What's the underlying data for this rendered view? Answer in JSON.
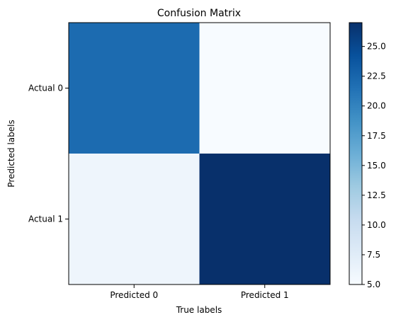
{
  "chart_data": {
    "type": "heatmap",
    "title": "Confusion Matrix",
    "xlabel": "True labels",
    "ylabel": "Predicted labels",
    "x_categories": [
      "Predicted 0",
      "Predicted 1"
    ],
    "y_categories": [
      "Actual 0",
      "Actual 1"
    ],
    "values": [
      [
        22,
        5
      ],
      [
        6,
        27
      ]
    ],
    "colormap": "Blues",
    "colorbar": {
      "range": [
        5,
        27
      ],
      "ticks": [
        "5.0",
        "7.5",
        "10.0",
        "12.5",
        "15.0",
        "17.5",
        "20.0",
        "22.5",
        "25.0"
      ]
    },
    "grid": false
  }
}
